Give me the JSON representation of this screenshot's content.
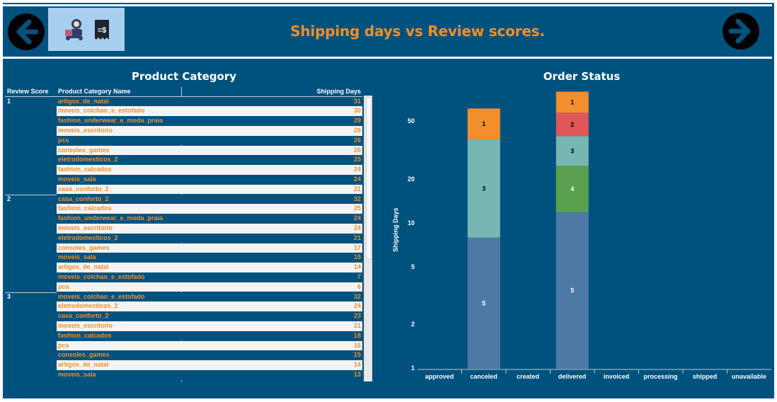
{
  "header": {
    "title": "Shipping days vs Review scores.",
    "back_icon": "arrow-left-icon",
    "forward_icon": "arrow-right-icon",
    "logo_icons": [
      "delivery-person-icon",
      "receipt-dollar-icon"
    ],
    "logo_receipt_text": "≡$"
  },
  "colors": {
    "background": "#00527e",
    "accent": "#f28e2b",
    "score_1": "#f28e2b",
    "score_2": "#e15759",
    "score_3": "#76b7b2",
    "score_4": "#59a14f",
    "score_5": "#4e79a7"
  },
  "table": {
    "title": "Product Category",
    "headers": {
      "score": "Review Score",
      "name": "Product Category Name",
      "days": "Shipping Days"
    },
    "groups": [
      {
        "score": "1",
        "rows": [
          {
            "name": "artigos_de_natal",
            "days": "31"
          },
          {
            "name": "moveis_colchao_e_estofado",
            "days": "30"
          },
          {
            "name": "fashion_underwear_e_moda_praia",
            "days": "29"
          },
          {
            "name": "moveis_escritorio",
            "days": "26"
          },
          {
            "name": "pcs",
            "days": "26"
          },
          {
            "name": "consoles_games",
            "days": "26"
          },
          {
            "name": "eletrodomesticos_2",
            "days": "25"
          },
          {
            "name": "fashion_calcados",
            "days": "24"
          },
          {
            "name": "moveis_sala",
            "days": "24"
          },
          {
            "name": "casa_conforto_2",
            "days": "21"
          }
        ]
      },
      {
        "score": "2",
        "rows": [
          {
            "name": "casa_conforto_2",
            "days": "32"
          },
          {
            "name": "fashion_calcados",
            "days": "25"
          },
          {
            "name": "fashion_underwear_e_moda_praia",
            "days": "24"
          },
          {
            "name": "moveis_escritorio",
            "days": "24"
          },
          {
            "name": "eletrodomesticos_2",
            "days": "21"
          },
          {
            "name": "consoles_games",
            "days": "17"
          },
          {
            "name": "moveis_sala",
            "days": "15"
          },
          {
            "name": "artigos_de_natal",
            "days": "14"
          },
          {
            "name": "moveis_colchao_e_estofado",
            "days": "7"
          },
          {
            "name": "pcs",
            "days": "6"
          }
        ]
      },
      {
        "score": "3",
        "rows": [
          {
            "name": "moveis_colchao_e_estofado",
            "days": "32"
          },
          {
            "name": "eletrodomesticos_2",
            "days": "24"
          },
          {
            "name": "casa_conforto_2",
            "days": "23"
          },
          {
            "name": "moveis_escritorio",
            "days": "21"
          },
          {
            "name": "fashion_calcados",
            "days": "18"
          },
          {
            "name": "pcs",
            "days": "16"
          },
          {
            "name": "consoles_games",
            "days": "15"
          },
          {
            "name": "artigos_de_natal",
            "days": "14"
          },
          {
            "name": "moveis_sala",
            "days": "13"
          }
        ]
      }
    ]
  },
  "chart_title": "Order Status",
  "chart_data": {
    "type": "bar",
    "stacked": true,
    "y_scale": "log",
    "ylabel": "Shipping Days",
    "yticks": [
      1,
      2,
      5,
      10,
      20,
      50
    ],
    "ylim": [
      1,
      72
    ],
    "categories": [
      "approved",
      "canceled",
      "created",
      "delivered",
      "invoiced",
      "processing",
      "shipped",
      "unavailable"
    ],
    "stacks": [
      {
        "category": "canceled",
        "segments": [
          {
            "label": "5",
            "value": 7,
            "color": "#4e79a7"
          },
          {
            "label": "3",
            "value": 30,
            "color": "#76b7b2"
          },
          {
            "label": "1",
            "value": 24,
            "color": "#f28e2b"
          }
        ]
      },
      {
        "category": "delivered",
        "segments": [
          {
            "label": "5",
            "value": 11,
            "color": "#4e79a7"
          },
          {
            "label": "4",
            "value": 13,
            "color": "#59a14f"
          },
          {
            "label": "3",
            "value": 15,
            "color": "#76b7b2"
          },
          {
            "label": "2",
            "value": 18,
            "color": "#e15759"
          },
          {
            "label": "1",
            "value": 23,
            "color": "#f28e2b"
          }
        ]
      }
    ]
  }
}
